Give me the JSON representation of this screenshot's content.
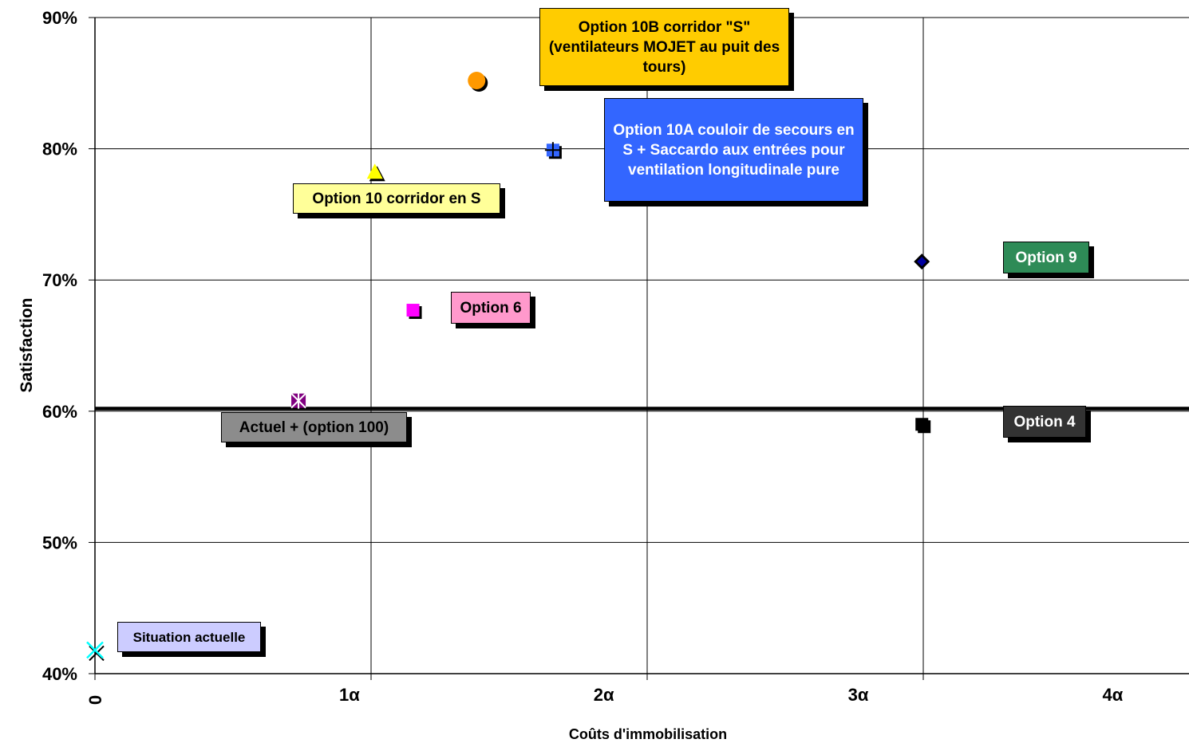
{
  "chart_data": {
    "type": "scatter",
    "xlabel": "Coûts d'immobilisation",
    "ylabel": "Satisfaction",
    "xlim": [
      0,
      4.3
    ],
    "ylim": [
      0.4,
      0.9
    ],
    "grid": true,
    "x_ticks": [
      {
        "value": 0.0,
        "label": "0"
      },
      {
        "value": 1.0,
        "label": "1α"
      },
      {
        "value": 2.0,
        "label": "2α"
      },
      {
        "value": 3.0,
        "label": "3α"
      },
      {
        "value": 4.0,
        "label": "4α"
      }
    ],
    "y_ticks": [
      {
        "value": 0.4,
        "label": "40%"
      },
      {
        "value": 0.5,
        "label": "50%"
      },
      {
        "value": 0.6,
        "label": "60%"
      },
      {
        "value": 0.7,
        "label": "70%"
      },
      {
        "value": 0.8,
        "label": "80%"
      },
      {
        "value": 0.9,
        "label": "90%"
      }
    ],
    "reference_line": {
      "y": 0.602
    },
    "points": [
      {
        "label": "Situation actuelle",
        "x": 0.0,
        "y": 0.418,
        "marker": "x-cross",
        "color": "#00FFFF",
        "box_color": "#CCCCFF",
        "text_color": "#000000"
      },
      {
        "label": "Actuel + (option 100)",
        "x": 0.8,
        "y": 0.608,
        "marker": "asterisk",
        "color": "#800080",
        "box_color": "#8C8C8C",
        "text_color": "#000000"
      },
      {
        "label": "Option 10 corridor en S",
        "x": 1.1,
        "y": 0.782,
        "marker": "triangle",
        "color": "#FFFF00",
        "box_color": "#FFFF99",
        "text_color": "#000000"
      },
      {
        "label": "Option 6",
        "x": 1.25,
        "y": 0.677,
        "marker": "square",
        "color": "#FF00FF",
        "box_color": "#FF99CC",
        "text_color": "#000000"
      },
      {
        "label": "Option 10B corridor \"S\" (ventilateurs MOJET au puit des tours)",
        "x": 1.5,
        "y": 0.852,
        "marker": "circle",
        "color": "#FF9900",
        "box_color": "#FFCC00",
        "text_color": "#000000"
      },
      {
        "label": "Option 10A  couloir de secours en S + Saccardo aux entrées pour ventilation longitudinale pure",
        "x": 1.8,
        "y": 0.799,
        "marker": "plus",
        "color": "#3366FF",
        "box_color": "#3366FF",
        "text_color": "#FFFFFF"
      },
      {
        "label": "Option 9",
        "x": 3.25,
        "y": 0.714,
        "marker": "diamond",
        "color": "#0000A0",
        "box_color": "#2E8B57",
        "text_color": "#FFFFFF"
      },
      {
        "label": "Option 4",
        "x": 3.25,
        "y": 0.59,
        "marker": "square",
        "color": "#000000",
        "box_color": "#333333",
        "text_color": "#FFFFFF"
      }
    ]
  }
}
